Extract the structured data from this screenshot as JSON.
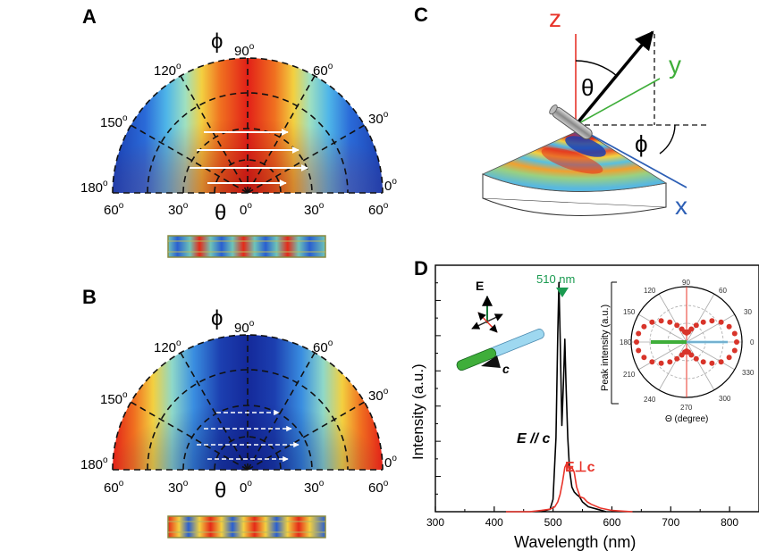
{
  "panelA": {
    "letter": "A",
    "phi_symbol": "ϕ",
    "theta_symbol": "θ",
    "phi_ticks": [
      {
        "v": "90",
        "s": "o"
      },
      {
        "v": "120",
        "s": "o"
      },
      {
        "v": "60",
        "s": "o"
      },
      {
        "v": "150",
        "s": "o"
      },
      {
        "v": "30",
        "s": "o"
      },
      {
        "v": "180",
        "s": "o"
      },
      {
        "v": "0",
        "s": "o"
      }
    ],
    "theta_ticks": [
      "60",
      "30",
      "0",
      "30",
      "60"
    ],
    "theta_sup": "o"
  },
  "panelB": {
    "letter": "B",
    "phi_symbol": "ϕ",
    "theta_symbol": "θ",
    "phi_ticks": [
      {
        "v": "90",
        "s": "o"
      },
      {
        "v": "120",
        "s": "o"
      },
      {
        "v": "60",
        "s": "o"
      },
      {
        "v": "150",
        "s": "o"
      },
      {
        "v": "30",
        "s": "o"
      },
      {
        "v": "180",
        "s": "o"
      },
      {
        "v": "0",
        "s": "o"
      }
    ],
    "theta_ticks": [
      "60",
      "30",
      "0",
      "30",
      "60"
    ],
    "theta_sup": "o"
  },
  "panelC": {
    "letter": "C",
    "z_label": "z",
    "y_label": "y",
    "x_label": "x",
    "theta_symbol": "θ",
    "phi_symbol": "ϕ",
    "colors": {
      "z": "#e8342a",
      "y": "#3fae3a",
      "x": "#2d5fb5"
    }
  },
  "panelD": {
    "letter": "D",
    "peak_label": "510 nm",
    "xlabel": "Wavelength (nm)",
    "ylabel": "Intensity (a.u.)",
    "label_parallel": "E // c",
    "label_perp": "E⊥c",
    "e_label": "E",
    "c_label": "c",
    "inset": {
      "ylabel": "Peak intensity (a.u.)",
      "xlabel": "Θ (degree)",
      "angle_labels": [
        "90",
        "60",
        "30",
        "0",
        "330",
        "300",
        "270",
        "240",
        "210",
        "180",
        "150",
        "120"
      ]
    }
  },
  "chart_data": {
    "type": "line",
    "title": "",
    "xlabel": "Wavelength (nm)",
    "ylabel": "Intensity (a.u.)",
    "xlim": [
      300,
      850
    ],
    "xticks": [
      300,
      400,
      500,
      600,
      700,
      800
    ],
    "series": [
      {
        "name": "E // c",
        "color": "#000000",
        "x": [
          480,
          495,
          500,
          505,
          508,
          510,
          512,
          515,
          518,
          520,
          522,
          525,
          528,
          532,
          536,
          540,
          545,
          550,
          560,
          575,
          590
        ],
        "y": [
          0.0,
          0.01,
          0.05,
          0.3,
          0.72,
          0.93,
          0.72,
          0.35,
          0.55,
          0.7,
          0.52,
          0.3,
          0.17,
          0.1,
          0.08,
          0.07,
          0.06,
          0.04,
          0.02,
          0.01,
          0.0
        ]
      },
      {
        "name": "E⊥c",
        "color": "#e8342a",
        "x": [
          420,
          460,
          480,
          495,
          503,
          508,
          512,
          516,
          520,
          524,
          528,
          532,
          536,
          540,
          546,
          552,
          558,
          565,
          580,
          600,
          620,
          635
        ],
        "y": [
          0.0,
          0.0,
          0.005,
          0.01,
          0.02,
          0.04,
          0.07,
          0.12,
          0.18,
          0.2,
          0.17,
          0.18,
          0.16,
          0.1,
          0.06,
          0.055,
          0.04,
          0.03,
          0.015,
          0.005,
          0.002,
          0.0
        ]
      }
    ]
  }
}
